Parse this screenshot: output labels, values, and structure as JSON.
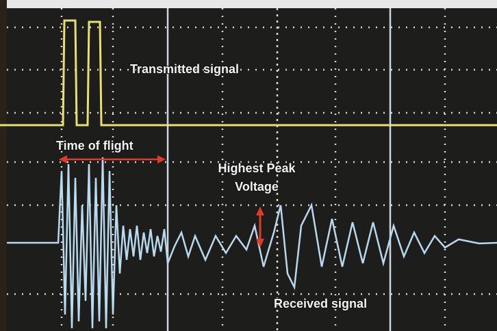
{
  "labels": {
    "transmitted_signal": "Transmitted signal",
    "time_of_flight": "Time of flight",
    "highest_peak_voltage": [
      "Highest Peak",
      "Voltage"
    ],
    "received_signal": "Received signal"
  }
}
